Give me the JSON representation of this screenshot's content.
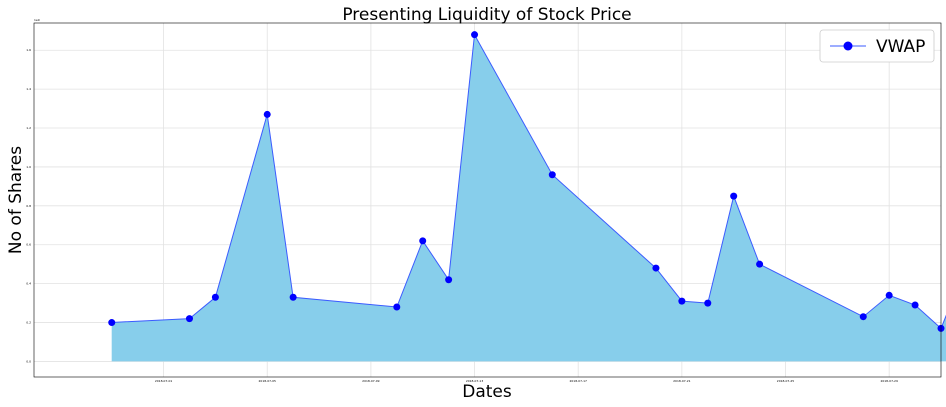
{
  "chart_data": {
    "type": "area",
    "title": "Presenting Liquidity of Stock Price",
    "xlabel": "Dates",
    "ylabel": "No of Shares",
    "y_scale_label": "1e9",
    "legend_position": "top-right",
    "grid": true,
    "colors": {
      "fill": "#87ceeb",
      "line": "#3b5bff",
      "marker": "#0000ff"
    },
    "xlim": [
      "2018-06-26",
      "2018-07-31"
    ],
    "ylim": [
      -0.08,
      1.74
    ],
    "x_ticks": [
      "2018-07-01",
      "2018-07-05",
      "2018-07-09",
      "2018-07-13",
      "2018-07-17",
      "2018-07-21",
      "2018-07-25",
      "2018-07-29"
    ],
    "x_tick_labels": [
      "2018-07-01",
      "2018-07-05",
      "2018-07-09",
      "2018-07-13",
      "2018-07-17",
      "2018-07-21",
      "2018-07-25",
      "2018-07-29"
    ],
    "y_ticks": [
      0.0,
      0.2,
      0.4,
      0.6,
      0.8,
      1.0,
      1.2,
      1.4,
      1.6
    ],
    "y_tick_labels": [
      "0.0",
      "0.2",
      "0.4",
      "0.6",
      "0.8",
      "1.0",
      "1.2",
      "1.4",
      "1.6"
    ],
    "series": [
      {
        "name": "VWAP",
        "x": [
          "2018-06-29",
          "2018-07-02",
          "2018-07-03",
          "2018-07-05",
          "2018-07-06",
          "2018-07-10",
          "2018-07-11",
          "2018-07-12",
          "2018-07-13",
          "2018-07-16",
          "2018-07-20",
          "2018-07-21",
          "2018-07-22",
          "2018-07-23",
          "2018-07-24",
          "2018-07-28",
          "2018-07-29",
          "2018-07-30",
          "2018-07-31",
          "2018-08-01"
        ],
        "values": [
          0.2,
          0.22,
          0.33,
          1.27,
          0.33,
          0.28,
          0.62,
          0.42,
          1.68,
          0.96,
          0.48,
          0.31,
          0.3,
          0.85,
          0.5,
          0.23,
          0.34,
          0.29,
          0.17,
          0.5
        ]
      }
    ]
  }
}
